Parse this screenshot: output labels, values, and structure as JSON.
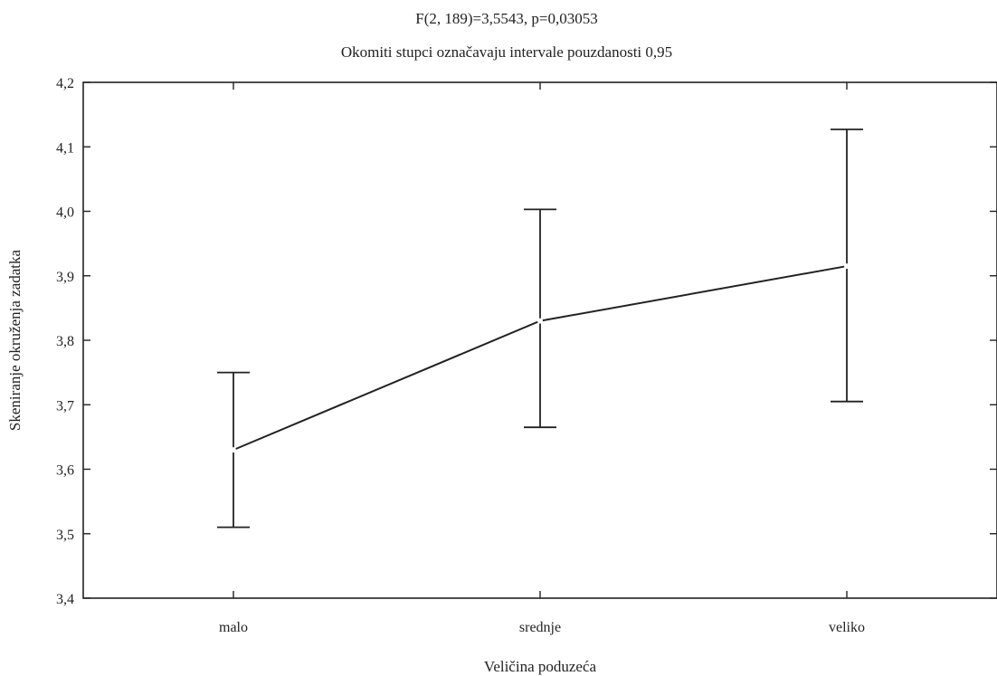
{
  "chart_data": {
    "type": "line",
    "title": "F(2, 189)=3,5543, p=0,03053",
    "subtitle": "Okomiti stupci označavaju intervale pouzdanosti 0,95",
    "xlabel": "Veličina poduzeća",
    "ylabel": "Skeniranje okruženja zadatka",
    "categories": [
      "malo",
      "srednje",
      "veliko"
    ],
    "ylim": [
      3.4,
      4.2
    ],
    "yticks": [
      "3,4",
      "3,5",
      "3,6",
      "3,7",
      "3,8",
      "3,9",
      "4,0",
      "4,1",
      "4,2"
    ],
    "yticks_values": [
      3.4,
      3.5,
      3.6,
      3.7,
      3.8,
      3.9,
      4.0,
      4.1,
      4.2
    ],
    "series": [
      {
        "values": [
          3.63,
          3.83,
          3.915
        ],
        "ci_lower": [
          3.51,
          3.665,
          3.705
        ],
        "ci_upper": [
          3.75,
          4.003,
          4.127
        ]
      }
    ],
    "grid": false,
    "colors": {
      "line": "#222222",
      "background": "#ffffff"
    }
  }
}
